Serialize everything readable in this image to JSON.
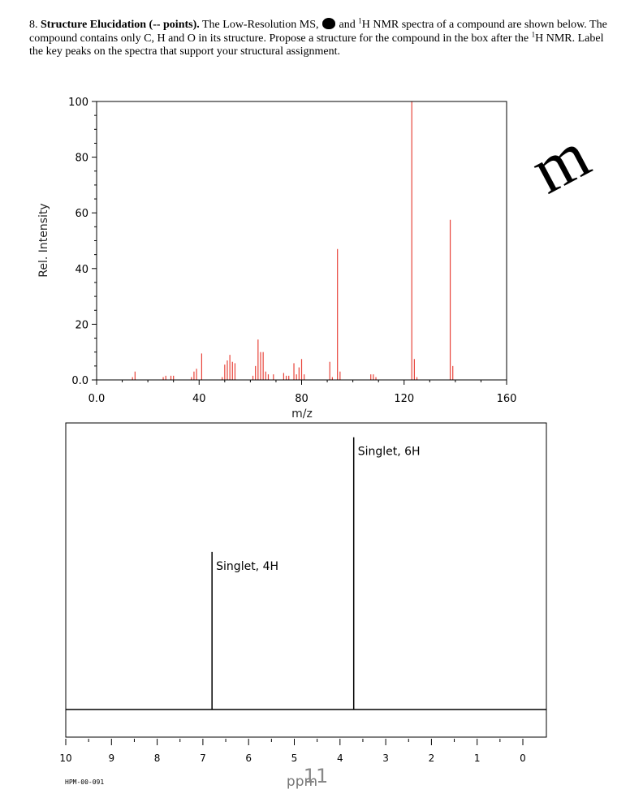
{
  "question": {
    "number": "8.",
    "title": "Structure Elucidation (-- points).",
    "text_part1": "The Low-Resolution MS,",
    "text_part2": "and",
    "h1": "1",
    "text_part3": "H NMR spectra of a compound are shown below.  The compound contains only C, H and O in its structure.  Propose a structure for the compound in the box after the",
    "h2": "1",
    "text_part4": "H NMR.  Label the key peaks on the spectra that support your structural assignment."
  },
  "colors": {
    "ms_peak": "#e8443a",
    "axis": "#000000",
    "grid_bg": "#ffffff"
  },
  "watermark": {
    "text": "m",
    "partial_bottom": "11"
  },
  "chart_data": [
    {
      "type": "bar",
      "xlabel": "m/z",
      "ylabel": "Rel. Intensity",
      "xlim": [
        0,
        160
      ],
      "ylim": [
        0,
        100
      ],
      "x_ticks": [
        "0.0",
        "40",
        "80",
        "120",
        "160"
      ],
      "x_tick_values": [
        0,
        40,
        80,
        120,
        160
      ],
      "y_ticks": [
        "0.0",
        "20",
        "40",
        "60",
        "80",
        "100"
      ],
      "y_tick_values": [
        0,
        20,
        40,
        60,
        80,
        100
      ],
      "peaks": [
        {
          "x": 14,
          "y": 1
        },
        {
          "x": 15,
          "y": 3
        },
        {
          "x": 26,
          "y": 1
        },
        {
          "x": 27,
          "y": 1.5
        },
        {
          "x": 29,
          "y": 1.5
        },
        {
          "x": 30,
          "y": 1.5
        },
        {
          "x": 37,
          "y": 1
        },
        {
          "x": 38,
          "y": 3
        },
        {
          "x": 39,
          "y": 4
        },
        {
          "x": 41,
          "y": 9.5
        },
        {
          "x": 49,
          "y": 1
        },
        {
          "x": 50,
          "y": 5.5
        },
        {
          "x": 51,
          "y": 7
        },
        {
          "x": 52,
          "y": 9
        },
        {
          "x": 53,
          "y": 6.5
        },
        {
          "x": 54,
          "y": 6
        },
        {
          "x": 61,
          "y": 1.5
        },
        {
          "x": 62,
          "y": 5
        },
        {
          "x": 63,
          "y": 14.5
        },
        {
          "x": 64,
          "y": 10
        },
        {
          "x": 65,
          "y": 10
        },
        {
          "x": 66,
          "y": 3
        },
        {
          "x": 67,
          "y": 2
        },
        {
          "x": 69,
          "y": 2
        },
        {
          "x": 73,
          "y": 2.5
        },
        {
          "x": 74,
          "y": 1.5
        },
        {
          "x": 75,
          "y": 1.5
        },
        {
          "x": 77,
          "y": 6
        },
        {
          "x": 78,
          "y": 2
        },
        {
          "x": 79,
          "y": 4.5
        },
        {
          "x": 80,
          "y": 7.5
        },
        {
          "x": 81,
          "y": 2
        },
        {
          "x": 91,
          "y": 6.5
        },
        {
          "x": 92,
          "y": 1
        },
        {
          "x": 94,
          "y": 47
        },
        {
          "x": 95,
          "y": 3
        },
        {
          "x": 107,
          "y": 2
        },
        {
          "x": 108,
          "y": 2
        },
        {
          "x": 109,
          "y": 1
        },
        {
          "x": 123,
          "y": 100
        },
        {
          "x": 124,
          "y": 7.5
        },
        {
          "x": 125,
          "y": 1
        },
        {
          "x": 138,
          "y": 57.5
        },
        {
          "x": 139,
          "y": 5
        }
      ]
    },
    {
      "type": "line",
      "xlabel": "ppm",
      "xlim": [
        10,
        0
      ],
      "x_ticks": [
        "10",
        "9",
        "8",
        "7",
        "6",
        "5",
        "4",
        "3",
        "2",
        "1",
        "0"
      ],
      "x_tick_values": [
        10,
        9,
        8,
        7,
        6,
        5,
        4,
        3,
        2,
        1,
        0
      ],
      "peaks": [
        {
          "ppm": 6.8,
          "height": 0.55,
          "label": "Singlet, 4H"
        },
        {
          "ppm": 3.7,
          "height": 0.95,
          "label": "Singlet, 6H"
        }
      ],
      "footer": "HPM-00-091"
    }
  ]
}
